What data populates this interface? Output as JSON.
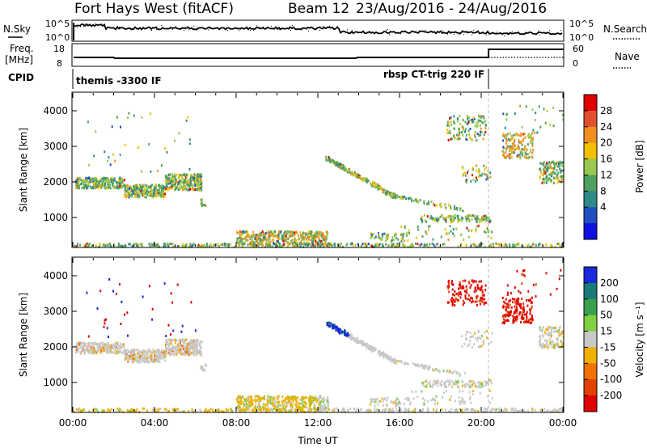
{
  "header": {
    "station": "Fort Hays West (fitACF)",
    "beam": "Beam 12",
    "dates": "23/Aug/2016 - 24/Aug/2016"
  },
  "strip_labels": {
    "nsky": "N.Sky",
    "freq_line1": "Freq.",
    "freq_line2": "[MHz]",
    "cpid": "CPID",
    "nsearch": "N.Search",
    "nave": "Nave",
    "nsky_ticks": [
      "10^5",
      "10^0"
    ],
    "nsearch_ticks": [
      "10^5",
      "10^0"
    ],
    "freq_ticks": [
      "18",
      "8"
    ],
    "nave_ticks": [
      "60",
      "0"
    ],
    "cpid_modes": [
      "themis -3300 IF",
      "rbsp CT-trig 220 IF"
    ]
  },
  "chart_data": [
    {
      "type": "scatter",
      "panel": "power",
      "xlabel": "",
      "ylabel": "Slant Range [km]",
      "colorbar_label": "Power [dB]",
      "x_range_hours": [
        0,
        24
      ],
      "y_range_km": [
        180,
        4500
      ],
      "y_ticks": [
        1000,
        2000,
        3000,
        4000
      ],
      "colorbar_ticks": [
        "4",
        "8",
        "12",
        "16",
        "20",
        "24",
        "28"
      ],
      "colorbar_colors": [
        "#1010e0",
        "#2050c0",
        "#2e8a8a",
        "#4fa060",
        "#98c850",
        "#f0c000",
        "#f09020",
        "#e05030",
        "#e00000"
      ],
      "regions": [
        {
          "t0": 0.0,
          "t1": 6.2,
          "r0": 1550,
          "r1": 2250,
          "desc": "band"
        },
        {
          "t0": 9.0,
          "t1": 12.0,
          "r0": 180,
          "r1": 500
        },
        {
          "t0": 12.3,
          "t1": 15.5,
          "r0": 1500,
          "r1": 2700
        },
        {
          "t0": 18.0,
          "t1": 24.0,
          "r0": 2000,
          "r1": 4100
        }
      ]
    },
    {
      "type": "scatter",
      "panel": "velocity",
      "xlabel": "Time UT",
      "ylabel": "Slant Range [km]",
      "colorbar_label": "Velocity [m s⁻¹]",
      "x_range_hours": [
        0,
        24
      ],
      "y_range_km": [
        180,
        4500
      ],
      "x_ticks": [
        "00:00",
        "04:00",
        "08:00",
        "12:00",
        "16:00",
        "20:00",
        "00:00"
      ],
      "y_ticks": [
        1000,
        2000,
        3000,
        4000
      ],
      "colorbar_ticks": [
        "200",
        "100",
        "50",
        "15",
        "-15",
        "-50",
        "-100",
        "-200"
      ],
      "colorbar_colors": [
        "#1a2ad8",
        "#1a7a7a",
        "#3aa050",
        "#80d040",
        "#c8c8c8",
        "#f0b000",
        "#f07000",
        "#e04000",
        "#e00000"
      ]
    }
  ]
}
